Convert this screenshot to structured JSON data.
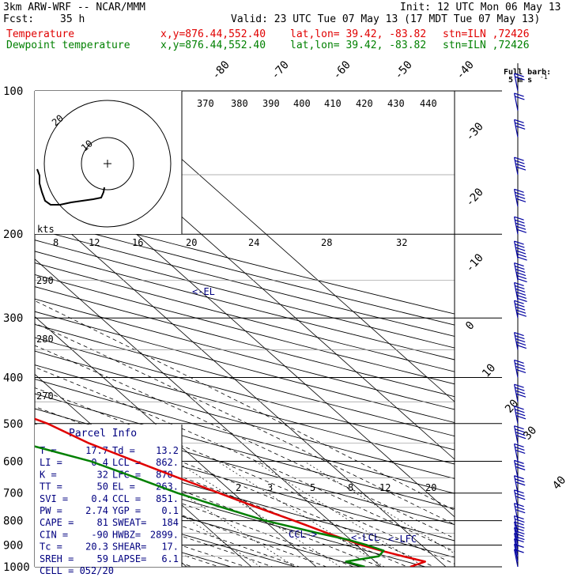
{
  "header": {
    "model": "3km ARW-WRF -- NCAR/MMM",
    "init": "Init: 12 UTC Mon 06 May 13",
    "fcst_label": "Fcst:",
    "fcst_value": "35 h",
    "valid": "Valid: 23 UTC Tue 07 May 13 (17 MDT Tue 07 May 13)",
    "temp_label": "Temperature",
    "dew_label": "Dewpoint temperature",
    "xy": "x,y=876.44,552.40",
    "latlon": "lat,lon= 39.42, -83.82",
    "stn": "stn=ILN ,72426"
  },
  "wind_legend": {
    "title": "Full barb:",
    "value": "5 m s",
    "sup": "-1"
  },
  "colors": {
    "temperature": "#e00000",
    "dewpoint": "#008000",
    "barbs": "#0000a0",
    "info": "#000080"
  },
  "chart_data": {
    "type": "line",
    "title": "",
    "xlabel": "",
    "ylabel": "",
    "y_axis": {
      "scale": "log",
      "ylim": [
        1000,
        100
      ],
      "ticks": [
        "100",
        "200",
        "300",
        "400",
        "500",
        "600",
        "700",
        "800",
        "900",
        "1000"
      ]
    },
    "isotherm_labels": [
      "-80",
      "-70",
      "-60",
      "-50",
      "-40",
      "-30",
      "-20",
      "-10",
      "0",
      "10",
      "20",
      "30",
      "40"
    ],
    "theta_e_labels": [
      "370",
      "380",
      "390",
      "400",
      "410",
      "420",
      "430",
      "440"
    ],
    "dry_adiabat_labels": [
      "290",
      "280",
      "270"
    ],
    "mixing_ratio_labels": [
      "2",
      "3",
      "5",
      "8",
      "12",
      "20"
    ],
    "hodograph": {
      "kts_label": "kts",
      "kts_ticks": [
        "8",
        "12",
        "16",
        "20",
        "24",
        "28",
        "32"
      ],
      "ring_labels": [
        "20",
        "10"
      ]
    },
    "levels_annotations": {
      "el": "<-EL",
      "ccl": "CCL->",
      "lcl": "<-LCL",
      "lfc": "<-LFC"
    },
    "series": [
      {
        "name": "Temperature",
        "points": [
          [
            1000,
            14.5
          ],
          [
            975,
            17.7
          ],
          [
            950,
            15.2
          ],
          [
            925,
            12.8
          ],
          [
            900,
            10.8
          ],
          [
            875,
            9.2
          ],
          [
            850,
            7.6
          ],
          [
            800,
            4.6
          ],
          [
            750,
            1.2
          ],
          [
            700,
            -2.2
          ],
          [
            650,
            -5.8
          ],
          [
            600,
            -9.6
          ],
          [
            550,
            -13.6
          ],
          [
            500,
            -16.6
          ],
          [
            450,
            -21.8
          ],
          [
            400,
            -27.5
          ],
          [
            350,
            -34.5
          ],
          [
            300,
            -42.2
          ],
          [
            250,
            -51.5
          ],
          [
            230,
            -55.5
          ],
          [
            200,
            -57.5
          ],
          [
            180,
            -58.5
          ],
          [
            150,
            -57.0
          ],
          [
            125,
            -56.5
          ],
          [
            100,
            -56.0
          ]
        ]
      },
      {
        "name": "Dewpoint temperature",
        "points": [
          [
            1000,
            7.5
          ],
          [
            975,
            5.5
          ],
          [
            950,
            11.5
          ],
          [
            925,
            13.2
          ],
          [
            900,
            11.6
          ],
          [
            875,
            9.4
          ],
          [
            850,
            6.2
          ],
          [
            800,
            0.2
          ],
          [
            750,
            -4.2
          ],
          [
            700,
            -8.6
          ],
          [
            650,
            -12.3
          ],
          [
            600,
            -16.5
          ],
          [
            550,
            -23.8
          ],
          [
            500,
            -30.2
          ],
          [
            450,
            -35.0
          ],
          [
            400,
            -38.8
          ],
          [
            350,
            -45.5
          ],
          [
            300,
            -52.5
          ],
          [
            250,
            -63.0
          ],
          [
            230,
            -66.5
          ],
          [
            200,
            -75.0
          ],
          [
            180,
            -76.0
          ],
          [
            150,
            -79.0
          ],
          [
            125,
            -81.5
          ],
          [
            110,
            -82.0
          ],
          [
            100,
            -80.5
          ]
        ]
      }
    ],
    "wind_barbs_m_s": [
      [
        1000,
        3
      ],
      [
        975,
        4
      ],
      [
        950,
        6
      ],
      [
        925,
        8
      ],
      [
        900,
        10
      ],
      [
        875,
        11
      ],
      [
        850,
        12
      ],
      [
        800,
        13
      ],
      [
        750,
        14
      ],
      [
        700,
        15
      ],
      [
        650,
        16
      ],
      [
        600,
        16
      ],
      [
        550,
        18
      ],
      [
        500,
        19
      ],
      [
        450,
        20
      ],
      [
        400,
        22
      ],
      [
        350,
        24
      ],
      [
        300,
        27
      ],
      [
        275,
        28
      ],
      [
        250,
        29
      ],
      [
        225,
        28
      ],
      [
        200,
        26
      ],
      [
        175,
        22
      ],
      [
        150,
        18
      ],
      [
        125,
        14
      ],
      [
        110,
        11
      ],
      [
        100,
        9
      ]
    ]
  },
  "parcel_info": {
    "title": "Parcel Info",
    "rows": [
      {
        "l1": "T   =",
        "v1": "17.7",
        "l2": "Td =",
        "v2": "13.2"
      },
      {
        "l1": "LI  =",
        "v1": "0.4",
        "l2": "LCL =",
        "v2": "862."
      },
      {
        "l1": "K   =",
        "v1": "32",
        "l2": "LFC =",
        "v2": "870."
      },
      {
        "l1": "TT  =",
        "v1": "50",
        "l2": "EL  =",
        "v2": "263."
      },
      {
        "l1": "SVI =",
        "v1": "0.4",
        "l2": "CCL =",
        "v2": "851."
      },
      {
        "l1": "PW  =",
        "v1": "2.74",
        "l2": "YGP =",
        "v2": "0.1"
      },
      {
        "l1": "CAPE =",
        "v1": "81",
        "l2": "SWEAT=",
        "v2": "184"
      },
      {
        "l1": "CIN  =",
        "v1": "-90",
        "l2": "HWBZ=",
        "v2": "2899."
      },
      {
        "l1": "Tc   =",
        "v1": "20.3",
        "l2": "SHEAR=",
        "v2": "17."
      },
      {
        "l1": "SREH =",
        "v1": "59",
        "l2": "LAPSE=",
        "v2": "6.1"
      },
      {
        "l1": "CELL = 052/20",
        "v1": "",
        "l2": "",
        "v2": ""
      }
    ]
  }
}
